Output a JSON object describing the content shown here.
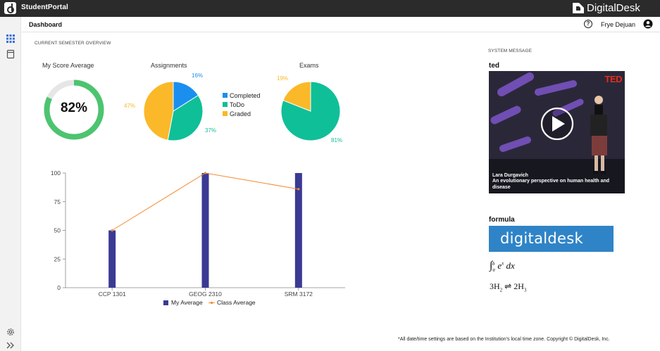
{
  "app": {
    "title": "StudentPortal",
    "brand": "DigitalDesk"
  },
  "header": {
    "page_title": "Dashboard",
    "user_name": "Frye Dejuan"
  },
  "overview": {
    "section_label": "CURRENT SEMESTER OVERVIEW",
    "score": {
      "title": "My Score Average",
      "value_text": "82%",
      "value": 82
    },
    "assignments": {
      "title": "Assignments",
      "slices": [
        {
          "label": "Completed",
          "pct_text": "16%",
          "value": 16,
          "color": "#1a8ff0"
        },
        {
          "label": "ToDo",
          "pct_text": "37%",
          "value": 37,
          "color": "#0fbf98"
        },
        {
          "label": "Graded",
          "pct_text": "47%",
          "value": 47,
          "color": "#fbb829"
        }
      ]
    },
    "exams": {
      "title": "Exams",
      "slices": [
        {
          "label": "ToDo",
          "pct_text": "81%",
          "value": 81,
          "color": "#0fbf98"
        },
        {
          "label": "Graded",
          "pct_text": "19%",
          "value": 19,
          "color": "#fbb829"
        }
      ]
    }
  },
  "chart_data": {
    "type": "bar",
    "categories": [
      "CCP 1301",
      "GEOG 2310",
      "SRM 3172"
    ],
    "series": [
      {
        "name": "My Average",
        "kind": "bar",
        "values": [
          50,
          100,
          100
        ],
        "color": "#3a3a94"
      },
      {
        "name": "Class Average",
        "kind": "line",
        "values": [
          50,
          100,
          86
        ],
        "color": "#f28a30"
      }
    ],
    "yticks": [
      0,
      25,
      50,
      75,
      100
    ],
    "ylim": [
      0,
      100
    ],
    "legend_position": "bottom"
  },
  "system": {
    "label": "SYSTEM MESSAGE",
    "ted_heading": "ted",
    "ted_logo": "TED",
    "video_caption_line1": "Lara Durgavich",
    "video_caption_line2": "An evolutionary perspective on human health and disease",
    "formula_heading": "formula",
    "banner_text": "digitaldesk"
  },
  "footer": "*All date/time settings are based on the Institution's local time zone.  Copyright © DigitalDesk, Inc."
}
